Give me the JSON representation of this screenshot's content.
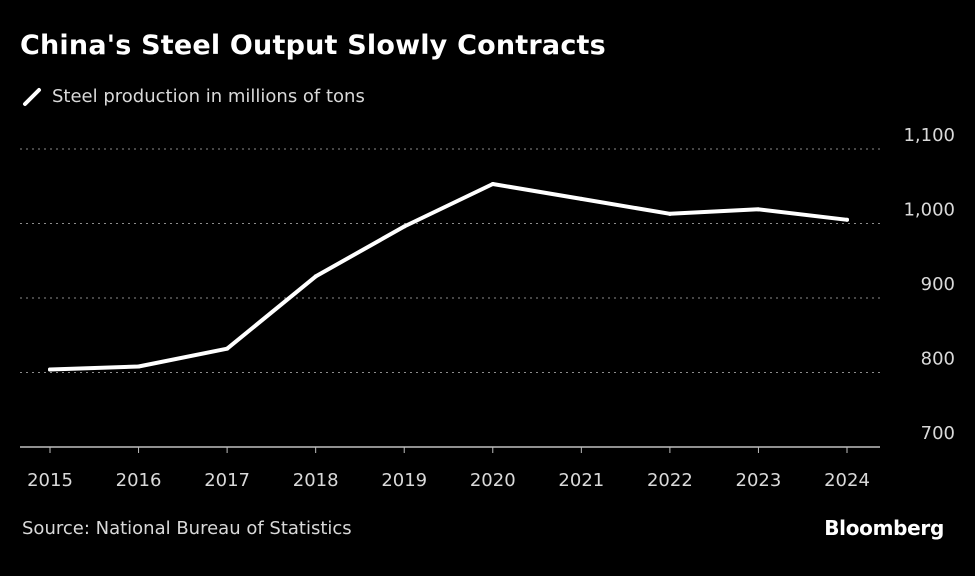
{
  "chart_data": {
    "type": "line",
    "title": "China's Steel Output Slowly Contracts",
    "xlabel": "",
    "ylabel": "",
    "x": [
      "2015",
      "2016",
      "2017",
      "2018",
      "2019",
      "2020",
      "2021",
      "2022",
      "2023",
      "2024"
    ],
    "series": [
      {
        "name": "Steel production in millions of tons",
        "color": "#ffffff",
        "values": [
          804,
          808,
          832,
          929,
          996,
          1053,
          1033,
          1013,
          1019,
          1005
        ]
      }
    ],
    "ylim": [
      700,
      1100
    ],
    "yticks": [
      700,
      800,
      900,
      1000,
      1100
    ],
    "ytick_labels": [
      "700",
      "800",
      "900",
      "1,000",
      "1,100"
    ],
    "grid": true,
    "legend": "top-left",
    "y_axis_side": "right"
  },
  "source": "Source: National Bureau of Statistics",
  "brand": "Bloomberg",
  "colors": {
    "background": "#000000",
    "line": "#ffffff",
    "grid": "#8c8c8c",
    "muted_text": "#d9d9d9"
  }
}
